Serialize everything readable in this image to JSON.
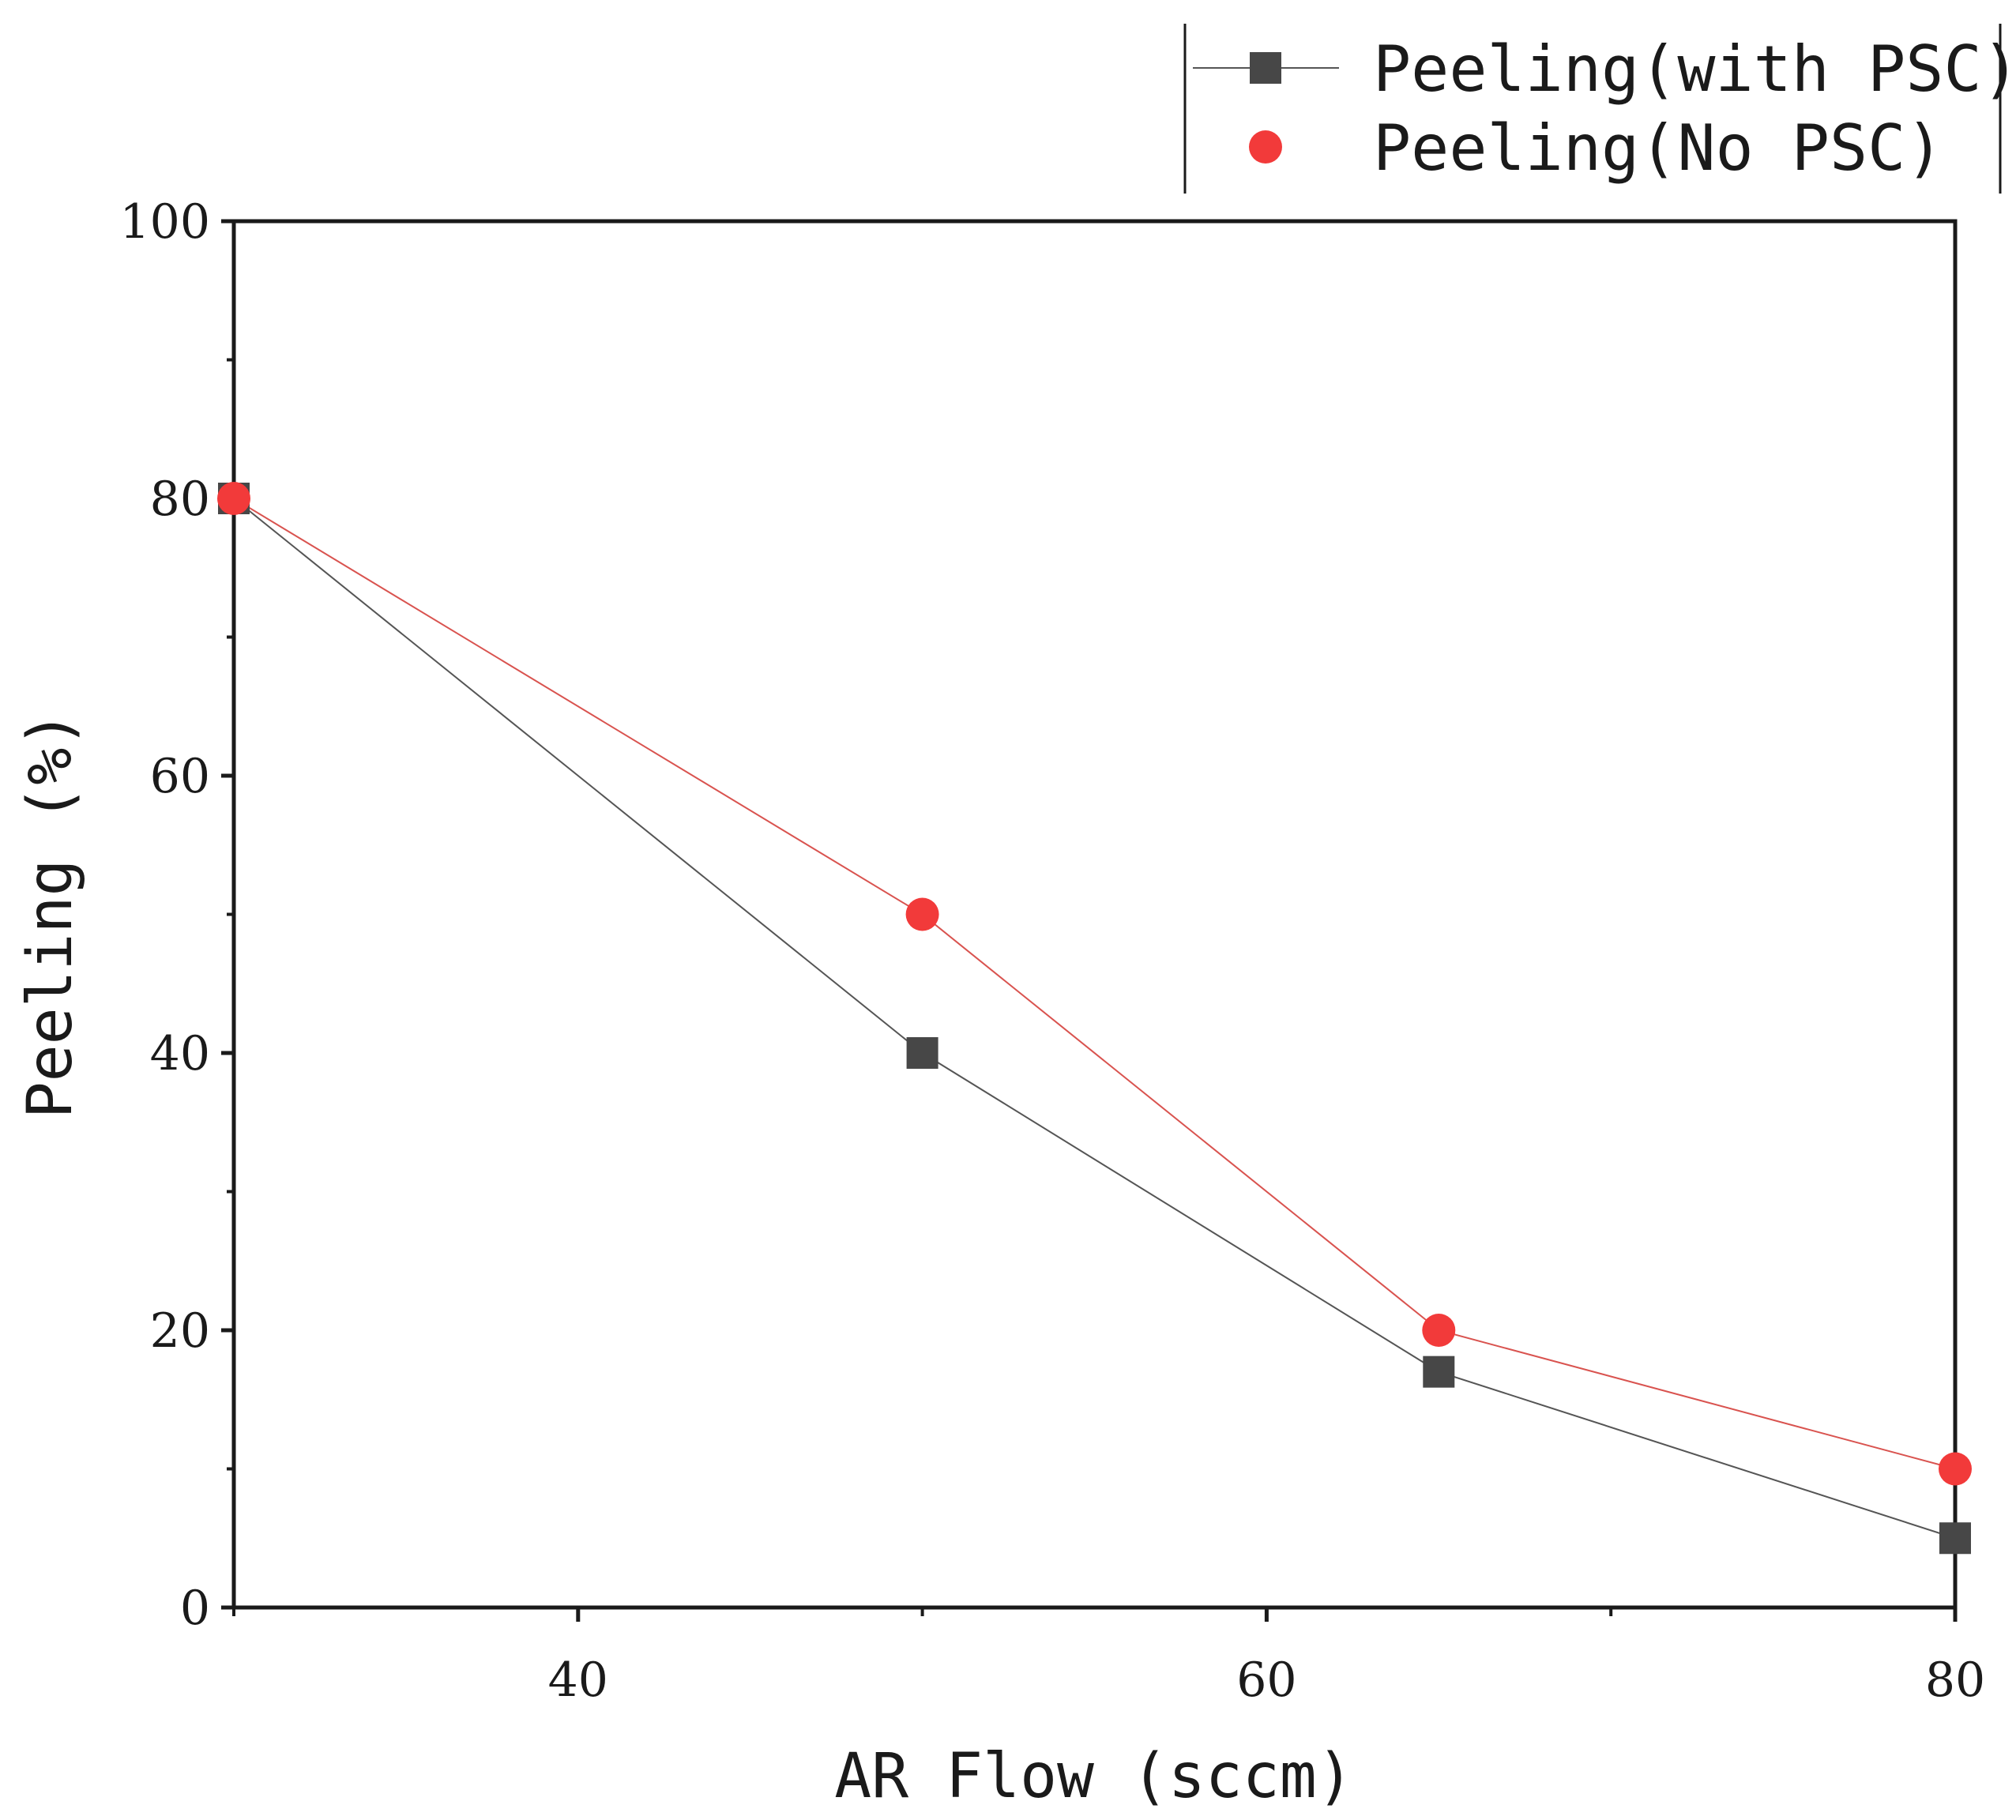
{
  "chart_data": {
    "type": "line",
    "title": "",
    "xlabel": "AR Flow (sccm)",
    "ylabel": "Peeling (%)",
    "xlim": [
      30,
      80
    ],
    "ylim": [
      0,
      100
    ],
    "xticks": [
      40,
      60,
      80
    ],
    "xticks_minor": [
      30,
      50,
      70
    ],
    "yticks": [
      0,
      20,
      40,
      60,
      80,
      100
    ],
    "yticks_minor": [
      10,
      30,
      50,
      70,
      90
    ],
    "grid": false,
    "legend_position": "top-right",
    "series": [
      {
        "name": "Peeling(with PSC)",
        "marker": "square",
        "color": "#474747",
        "line_color": "#555555",
        "x": [
          30,
          50,
          65,
          80
        ],
        "y": [
          80,
          40,
          17,
          5
        ]
      },
      {
        "name": "Peeling(No PSC)",
        "marker": "circle",
        "color": "#f23a3a",
        "line_color": "#d9534f",
        "x": [
          30,
          50,
          65,
          80
        ],
        "y": [
          80,
          50,
          20,
          10
        ]
      }
    ]
  }
}
